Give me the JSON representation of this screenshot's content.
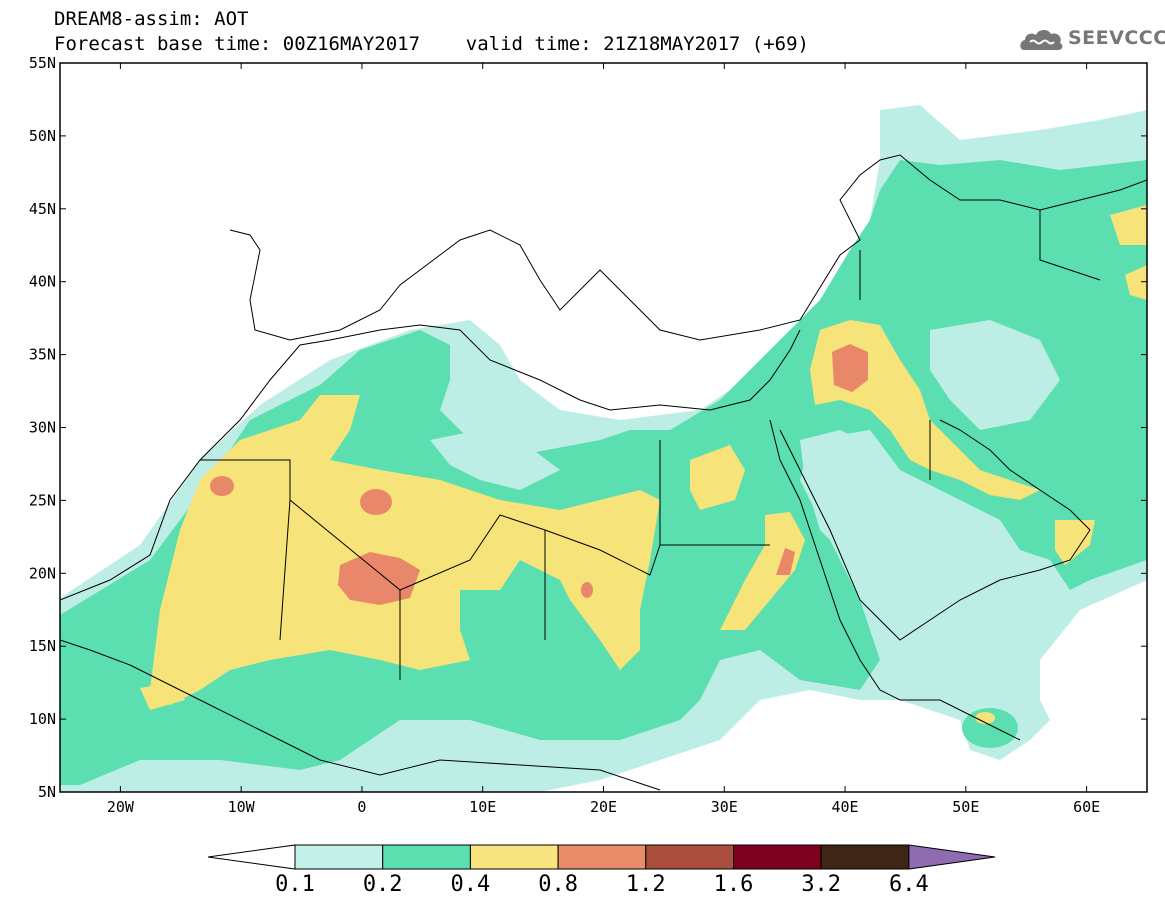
{
  "header": {
    "title_line1": "DREAM8-assim: AOT",
    "title_line2": "Forecast base time: 00Z16MAY2017    valid time: 21Z18MAY2017 (+69)"
  },
  "logo": {
    "text": "SEEVCCC",
    "icon": "cloud-icon"
  },
  "map": {
    "lon_range": [
      -25,
      65
    ],
    "lat_range": [
      5,
      55
    ],
    "lat_ticks": [
      {
        "lat": 55,
        "label": "55N"
      },
      {
        "lat": 50,
        "label": "50N"
      },
      {
        "lat": 45,
        "label": "45N"
      },
      {
        "lat": 40,
        "label": "40N"
      },
      {
        "lat": 35,
        "label": "35N"
      },
      {
        "lat": 30,
        "label": "30N"
      },
      {
        "lat": 25,
        "label": "25N"
      },
      {
        "lat": 20,
        "label": "20N"
      },
      {
        "lat": 15,
        "label": "15N"
      },
      {
        "lat": 10,
        "label": "10N"
      },
      {
        "lat": 5,
        "label": "5N"
      }
    ],
    "lon_ticks": [
      {
        "lon": -20,
        "label": "20W"
      },
      {
        "lon": -10,
        "label": "10W"
      },
      {
        "lon": 0,
        "label": "0"
      },
      {
        "lon": 10,
        "label": "10E"
      },
      {
        "lon": 20,
        "label": "20E"
      },
      {
        "lon": 30,
        "label": "30E"
      },
      {
        "lon": 40,
        "label": "40E"
      },
      {
        "lon": 50,
        "label": "50E"
      },
      {
        "lon": 60,
        "label": "60E"
      }
    ],
    "fill_colors": {
      "c01": "#bdeee6",
      "c02": "#5cdfb0",
      "c04": "#f6e37a",
      "c08": "#e9876a",
      "c12": "#b4523e"
    }
  },
  "colorbar": {
    "levels": [
      "0.1",
      "0.2",
      "0.4",
      "0.8",
      "1.2",
      "1.6",
      "3.2",
      "6.4"
    ],
    "colors": [
      "#ffffff",
      "#c3f0e8",
      "#5cdfb0",
      "#f7e47e",
      "#ea8b6a",
      "#aa4f3d",
      "#7d0020",
      "#3d2616",
      "#8f6bb1"
    ]
  }
}
